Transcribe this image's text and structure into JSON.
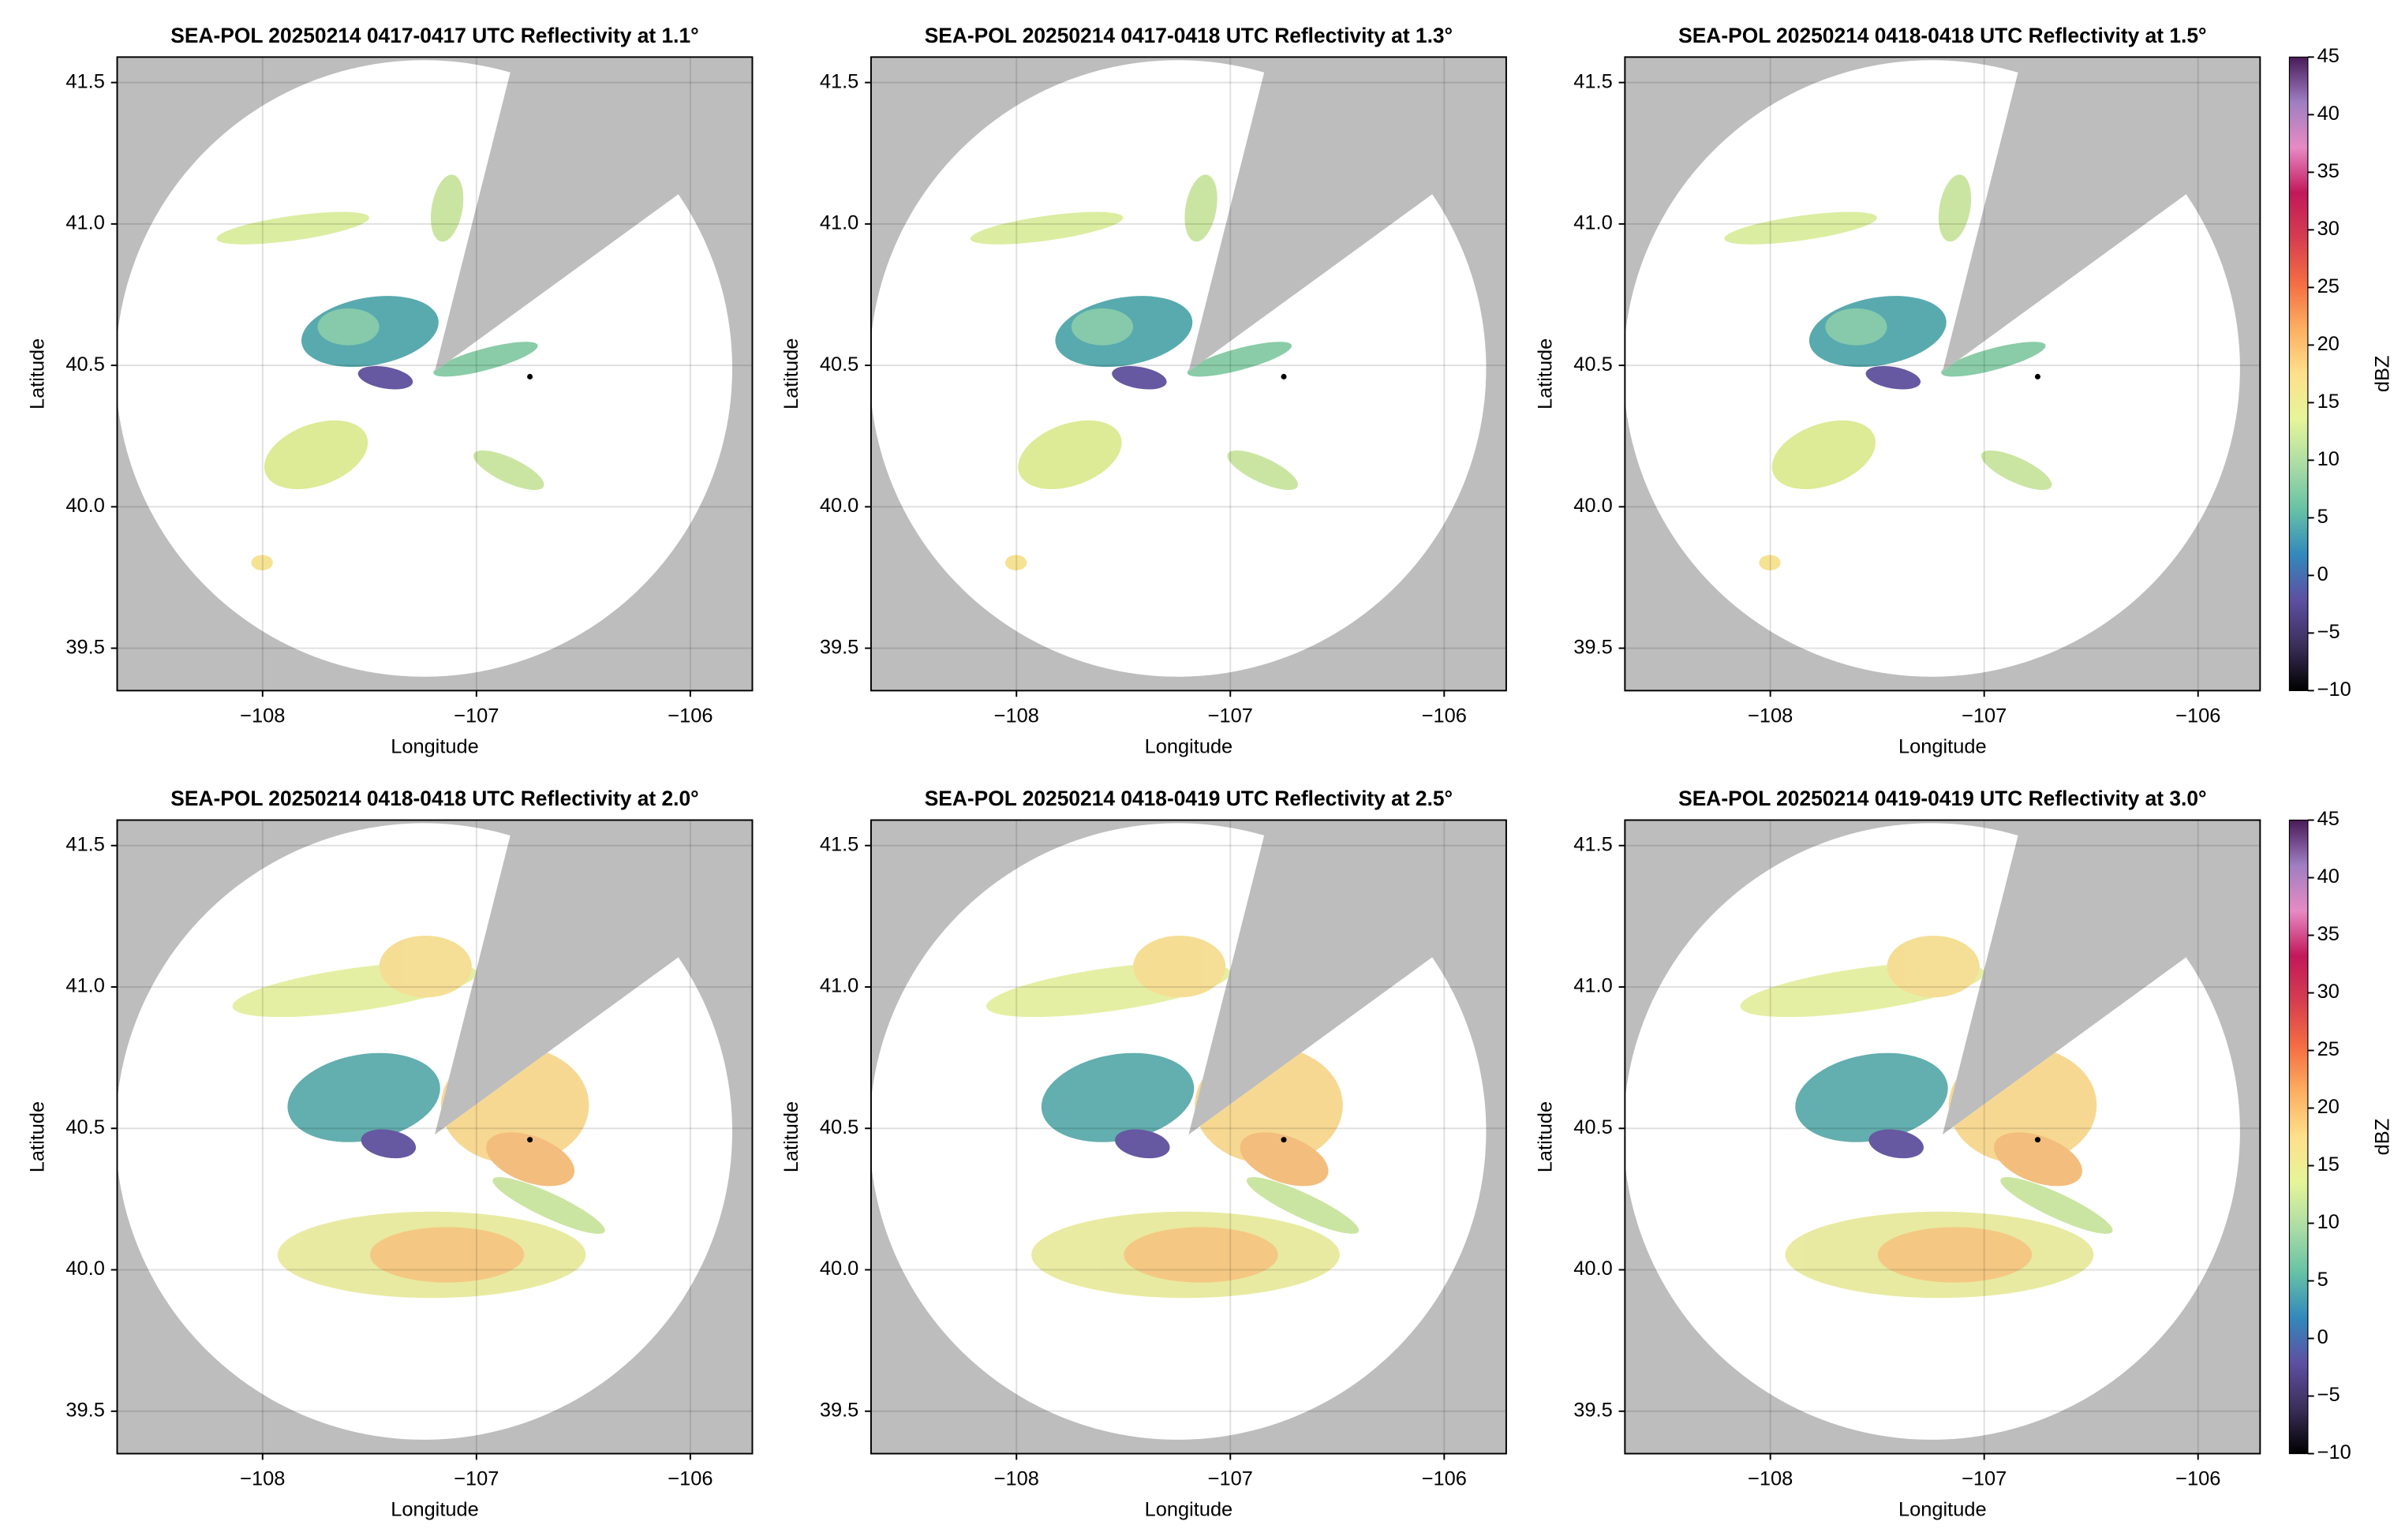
{
  "chart_data": [
    {
      "type": "radar",
      "title": "SEA-POL 20250214 0417-0417 UTC Reflectivity at 1.1°",
      "xlabel": "Longitude",
      "ylabel": "Latitude",
      "xlim": [
        -108.68,
        -105.71
      ],
      "ylim": [
        39.35,
        41.59
      ],
      "xticks": [
        {
          "value": -108,
          "label": "−108"
        },
        {
          "value": -107,
          "label": "−107"
        },
        {
          "value": -106,
          "label": "−106"
        }
      ],
      "yticks": [
        39.5,
        {
          "value": 40,
          "label": "40.0"
        },
        40.5,
        {
          "value": 41,
          "label": "41.0"
        },
        41.5
      ],
      "grid": true,
      "marker": {
        "x": -106.75,
        "y": 40.46
      }
    },
    {
      "type": "radar",
      "title": "SEA-POL 20250214 0417-0418 UTC Reflectivity at 1.3°",
      "xlabel": "Longitude",
      "ylabel": "Latitude",
      "xlim": [
        -108.68,
        -105.71
      ],
      "ylim": [
        39.35,
        41.59
      ],
      "xticks": [
        {
          "value": -108,
          "label": "−108"
        },
        {
          "value": -107,
          "label": "−107"
        },
        {
          "value": -106,
          "label": "−106"
        }
      ],
      "yticks": [
        39.5,
        {
          "value": 40,
          "label": "40.0"
        },
        40.5,
        {
          "value": 41,
          "label": "41.0"
        },
        41.5
      ],
      "grid": true,
      "marker": {
        "x": -106.75,
        "y": 40.46
      }
    },
    {
      "type": "radar",
      "title": "SEA-POL 20250214 0418-0418 UTC Reflectivity at 1.5°",
      "xlabel": "Longitude",
      "ylabel": "Latitude",
      "xlim": [
        -108.68,
        -105.71
      ],
      "ylim": [
        39.35,
        41.59
      ],
      "xticks": [
        {
          "value": -108,
          "label": "−108"
        },
        {
          "value": -107,
          "label": "−107"
        },
        {
          "value": -106,
          "label": "−106"
        }
      ],
      "yticks": [
        39.5,
        {
          "value": 40,
          "label": "40.0"
        },
        40.5,
        {
          "value": 41,
          "label": "41.0"
        },
        41.5
      ],
      "grid": true,
      "marker": {
        "x": -106.75,
        "y": 40.46
      },
      "colorbar": {
        "label": "dBZ",
        "lim": [
          -10,
          45
        ],
        "ticks": [
          {
            "value": -10,
            "label": "−10"
          },
          {
            "value": -5,
            "label": "−5"
          },
          0,
          5,
          10,
          15,
          20,
          25,
          30,
          35,
          40,
          45
        ],
        "colormap": [
          "#000000",
          "#3b2f5a",
          "#5e4fa2",
          "#3288bd",
          "#66c2a5",
          "#abdda4",
          "#e6f598",
          "#fee08b",
          "#fdae61",
          "#f46d43",
          "#d53e4f",
          "#c2185b",
          "#e78ac3",
          "#9e7fc1",
          "#4a1a5a"
        ]
      }
    },
    {
      "type": "radar",
      "title": "SEA-POL 20250214 0418-0418 UTC Reflectivity at 2.0°",
      "xlabel": "Longitude",
      "ylabel": "Latitude",
      "xlim": [
        -108.68,
        -105.71
      ],
      "ylim": [
        39.35,
        41.59
      ],
      "xticks": [
        {
          "value": -108,
          "label": "−108"
        },
        {
          "value": -107,
          "label": "−107"
        },
        {
          "value": -106,
          "label": "−106"
        }
      ],
      "yticks": [
        39.5,
        {
          "value": 40,
          "label": "40.0"
        },
        40.5,
        {
          "value": 41,
          "label": "41.0"
        },
        41.5
      ],
      "grid": true,
      "marker": {
        "x": -106.75,
        "y": 40.46
      }
    },
    {
      "type": "radar",
      "title": "SEA-POL 20250214 0418-0419 UTC Reflectivity at 2.5°",
      "xlabel": "Longitude",
      "ylabel": "Latitude",
      "xlim": [
        -108.68,
        -105.71
      ],
      "ylim": [
        39.35,
        41.59
      ],
      "xticks": [
        {
          "value": -108,
          "label": "−108"
        },
        {
          "value": -107,
          "label": "−107"
        },
        {
          "value": -106,
          "label": "−106"
        }
      ],
      "yticks": [
        39.5,
        {
          "value": 40,
          "label": "40.0"
        },
        40.5,
        {
          "value": 41,
          "label": "41.0"
        },
        41.5
      ],
      "grid": true,
      "marker": {
        "x": -106.75,
        "y": 40.46
      }
    },
    {
      "type": "radar",
      "title": "SEA-POL 20250214 0419-0419 UTC Reflectivity at 3.0°",
      "xlabel": "Longitude",
      "ylabel": "Latitude",
      "xlim": [
        -108.68,
        -105.71
      ],
      "ylim": [
        39.35,
        41.59
      ],
      "xticks": [
        {
          "value": -108,
          "label": "−108"
        },
        {
          "value": -107,
          "label": "−107"
        },
        {
          "value": -106,
          "label": "−106"
        }
      ],
      "yticks": [
        39.5,
        {
          "value": 40,
          "label": "40.0"
        },
        40.5,
        {
          "value": 41,
          "label": "41.0"
        },
        41.5
      ],
      "grid": true,
      "marker": {
        "x": -106.75,
        "y": 40.46
      },
      "colorbar": {
        "label": "dBZ",
        "lim": [
          -10,
          45
        ],
        "ticks": [
          {
            "value": -10,
            "label": "−10"
          },
          {
            "value": -5,
            "label": "−5"
          },
          0,
          5,
          10,
          15,
          20,
          25,
          30,
          35,
          40,
          45
        ],
        "colormap": [
          "#000000",
          "#3b2f5a",
          "#5e4fa2",
          "#3288bd",
          "#66c2a5",
          "#abdda4",
          "#e6f598",
          "#fee08b",
          "#fdae61",
          "#f46d43",
          "#d53e4f",
          "#c2185b",
          "#e78ac3",
          "#9e7fc1",
          "#4a1a5a"
        ]
      }
    }
  ]
}
